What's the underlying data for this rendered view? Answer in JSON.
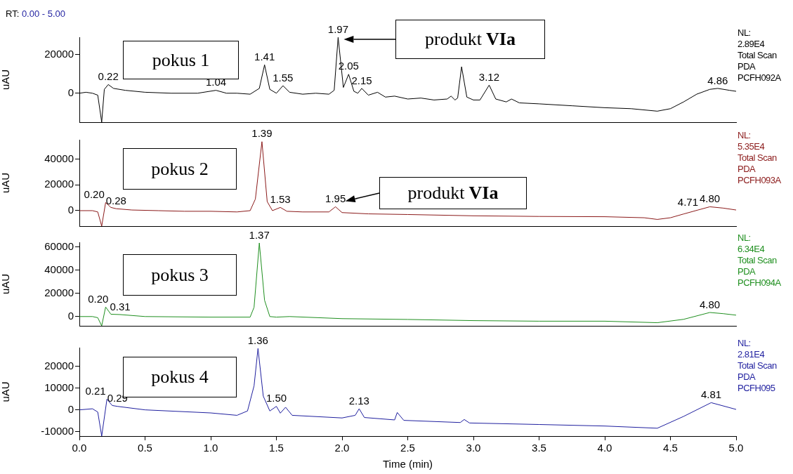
{
  "chart_data": [
    {
      "type": "line",
      "title": "RT: 0.00 - 5.00",
      "ylabel": "uAU",
      "color": "#000000",
      "xlim": [
        0,
        5
      ],
      "ylim": [
        -15000,
        29000
      ],
      "yticks": [
        0,
        20000
      ],
      "tick_labels": "y",
      "x": [
        0,
        0.05,
        0.1,
        0.14,
        0.17,
        0.19,
        0.22,
        0.26,
        0.35,
        0.5,
        0.7,
        0.9,
        1.04,
        1.12,
        1.2,
        1.3,
        1.37,
        1.41,
        1.45,
        1.5,
        1.55,
        1.6,
        1.7,
        1.8,
        1.9,
        1.94,
        1.97,
        2.01,
        2.05,
        2.09,
        2.12,
        2.15,
        2.2,
        2.27,
        2.33,
        2.4,
        2.5,
        2.6,
        2.7,
        2.8,
        2.83,
        2.86,
        2.88,
        2.91,
        2.95,
        3.0,
        3.05,
        3.12,
        3.17,
        3.25,
        3.29,
        3.35,
        3.5,
        3.75,
        4.0,
        4.2,
        4.4,
        4.5,
        4.6,
        4.7,
        4.8,
        4.86,
        4.95,
        5.0
      ],
      "values": [
        0,
        500,
        0,
        -1000,
        -15000,
        2000,
        4500,
        2500,
        1500,
        500,
        0,
        0,
        1500,
        0,
        0,
        -500,
        2500,
        14700,
        2000,
        0,
        3900,
        500,
        -500,
        0,
        -500,
        1500,
        28900,
        3000,
        9800,
        1000,
        0,
        2500,
        -1000,
        500,
        -2000,
        -1500,
        -3000,
        -2500,
        -3500,
        -3000,
        -1500,
        -3500,
        -2500,
        13700,
        -2000,
        -3500,
        -3500,
        4200,
        -3000,
        -4500,
        -3000,
        -5000,
        -5500,
        -6500,
        -7500,
        -8000,
        -9300,
        -8000,
        -4500,
        -500,
        2000,
        2500,
        1500,
        1000
      ],
      "annotations": [
        "pokus 1",
        "produkt VIa",
        {
          "text": "0.22",
          "x": 0.22,
          "y": 4500
        },
        {
          "text": "1.04",
          "x": 1.04,
          "y": 1500
        },
        {
          "text": "1.41",
          "x": 1.41,
          "y": 14700
        },
        {
          "text": "1.55",
          "x": 1.55,
          "y": 3900
        },
        {
          "text": "1.97",
          "x": 1.97,
          "y": 28900
        },
        {
          "text": "2.05",
          "x": 2.05,
          "y": 9800
        },
        {
          "text": "2.15",
          "x": 2.15,
          "y": 2500
        },
        {
          "text": "3.12",
          "x": 3.12,
          "y": 4200
        },
        {
          "text": "4.86",
          "x": 4.86,
          "y": 2500
        },
        "NL:",
        "2.89E4",
        "Total Scan",
        "PDA",
        "PCFH092A"
      ]
    },
    {
      "type": "line",
      "ylabel": "uAU",
      "color": "#8b1a1a",
      "xlim": [
        0,
        5
      ],
      "ylim": [
        -12000,
        55000
      ],
      "yticks": [
        0,
        20000,
        40000
      ],
      "tick_labels": "y",
      "x": [
        0,
        0.1,
        0.14,
        0.17,
        0.2,
        0.24,
        0.28,
        0.4,
        0.6,
        0.8,
        1.0,
        1.2,
        1.3,
        1.34,
        1.39,
        1.43,
        1.47,
        1.53,
        1.58,
        1.7,
        1.9,
        1.95,
        2.0,
        2.2,
        2.5,
        3.0,
        3.5,
        4.0,
        4.3,
        4.4,
        4.5,
        4.6,
        4.71,
        4.8,
        4.9,
        5.0
      ],
      "values": [
        0,
        0,
        -1000,
        -12000,
        6300,
        2500,
        1500,
        500,
        0,
        -500,
        -500,
        -1000,
        0,
        9000,
        53500,
        7000,
        0,
        2500,
        -500,
        -1000,
        -1000,
        3000,
        -1500,
        -2500,
        -3000,
        -4000,
        -4500,
        -4700,
        -5500,
        -6800,
        -5500,
        -2600,
        500,
        3000,
        2000,
        500
      ],
      "annotations": [
        "pokus 2",
        "produkt VIa",
        {
          "text": "0.20",
          "x": 0.2,
          "y": 6300
        },
        {
          "text": "0.28",
          "x": 0.28,
          "y": 1500
        },
        {
          "text": "1.39",
          "x": 1.39,
          "y": 53500
        },
        {
          "text": "1.53",
          "x": 1.53,
          "y": 2500
        },
        {
          "text": "1.95",
          "x": 1.95,
          "y": 3000
        },
        {
          "text": "4.71",
          "x": 4.71,
          "y": 500
        },
        {
          "text": "4.80",
          "x": 4.8,
          "y": 3000
        },
        "NL:",
        "5.35E4",
        "Total Scan",
        "PDA",
        "PCFH093A"
      ]
    },
    {
      "type": "line",
      "ylabel": "uAU",
      "color": "#1f8f1f",
      "xlim": [
        0,
        5
      ],
      "ylim": [
        -8000,
        64000
      ],
      "yticks": [
        0,
        20000,
        40000,
        60000
      ],
      "tick_labels": "y",
      "x": [
        0,
        0.1,
        0.14,
        0.17,
        0.2,
        0.24,
        0.31,
        0.5,
        1.0,
        1.3,
        1.33,
        1.37,
        1.41,
        1.45,
        1.5,
        1.6,
        2.0,
        2.5,
        3.0,
        3.5,
        4.0,
        4.4,
        4.6,
        4.8,
        4.9,
        5.0
      ],
      "values": [
        0,
        0,
        -1000,
        -8000,
        8200,
        2000,
        1700,
        0,
        -500,
        -500,
        8000,
        63400,
        14000,
        0,
        -500,
        0,
        -1800,
        -2500,
        -3500,
        -4000,
        -4000,
        -5300,
        -2400,
        3500,
        2500,
        1200
      ],
      "annotations": [
        "pokus 3",
        {
          "text": "0.20",
          "x": 0.2,
          "y": 8200
        },
        {
          "text": "0.31",
          "x": 0.31,
          "y": 1700
        },
        {
          "text": "1.37",
          "x": 1.37,
          "y": 63400
        },
        {
          "text": "4.80",
          "x": 4.8,
          "y": 3500
        },
        "NL:",
        "6.34E4",
        "Total Scan",
        "PDA",
        "PCFH094A"
      ]
    },
    {
      "type": "line",
      "xlabel": "Time (min)",
      "ylabel": "uAU",
      "color": "#1f1f9f",
      "xlim": [
        0,
        5
      ],
      "ylim": [
        -12000,
        28500
      ],
      "yticks": [
        -10000,
        0,
        10000,
        20000
      ],
      "xticks": [
        {
          "value": 0,
          "label": "0.0"
        },
        {
          "value": 0.5,
          "label": "0.5"
        },
        {
          "value": 1,
          "label": "1.0"
        },
        {
          "value": 1.5,
          "label": "1.5"
        },
        {
          "value": 2,
          "label": "2.0"
        },
        {
          "value": 2.5,
          "label": "2.5"
        },
        {
          "value": 3,
          "label": "3.0"
        },
        {
          "value": 3.5,
          "label": "3.5"
        },
        {
          "value": 4,
          "label": "4.0"
        },
        {
          "value": 4.5,
          "label": "4.5"
        },
        {
          "value": 5,
          "label": "5.0"
        }
      ],
      "x": [
        0,
        0.1,
        0.14,
        0.17,
        0.21,
        0.25,
        0.29,
        0.5,
        1.0,
        1.2,
        1.28,
        1.33,
        1.36,
        1.4,
        1.45,
        1.5,
        1.53,
        1.57,
        1.62,
        2.0,
        2.1,
        2.13,
        2.17,
        2.4,
        2.42,
        2.47,
        2.9,
        2.93,
        2.97,
        3.5,
        4.0,
        4.4,
        4.6,
        4.81,
        5.0
      ],
      "values": [
        0,
        500,
        -1000,
        -12000,
        4900,
        2000,
        1600,
        0,
        -1400,
        -2500,
        -500,
        11000,
        28100,
        6300,
        -500,
        1600,
        -1500,
        1200,
        -2500,
        -3700,
        -2500,
        500,
        -3500,
        -4600,
        -1200,
        -4800,
        -5800,
        -4400,
        -6000,
        -6700,
        -7400,
        -8400,
        -3000,
        3300,
        200
      ],
      "annotations": [
        "pokus 4",
        {
          "text": "0.21",
          "x": 0.21,
          "y": 4900
        },
        {
          "text": "0.29",
          "x": 0.29,
          "y": 1600
        },
        {
          "text": "1.36",
          "x": 1.36,
          "y": 28100
        },
        {
          "text": "1.50",
          "x": 1.5,
          "y": 1600
        },
        {
          "text": "2.13",
          "x": 2.13,
          "y": 500
        },
        {
          "text": "4.81",
          "x": 4.81,
          "y": 3300
        },
        "NL:",
        "2.81E4",
        "Total Scan",
        "PDA",
        "PCFH095"
      ]
    }
  ]
}
